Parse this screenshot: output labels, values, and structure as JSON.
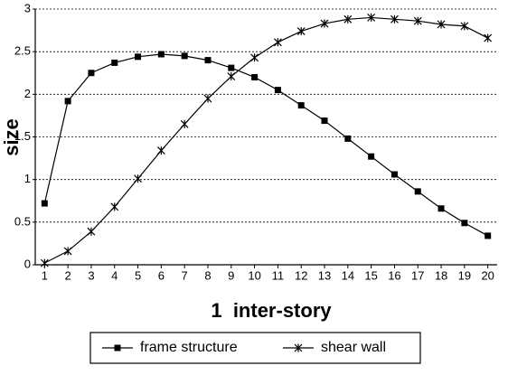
{
  "chart_data": {
    "type": "line",
    "x": [
      1,
      2,
      3,
      4,
      5,
      6,
      7,
      8,
      9,
      10,
      11,
      12,
      13,
      14,
      15,
      16,
      17,
      18,
      19,
      20
    ],
    "xlim": [
      0.6,
      20.4
    ],
    "ylim": [
      0,
      3
    ],
    "yticks": [
      0,
      0.5,
      1,
      1.5,
      2,
      2.5,
      3
    ],
    "xlabel": "1  inter-story",
    "ylabel": "size",
    "grid": true,
    "series": [
      {
        "name": "frame structure",
        "color": "#000000",
        "marker": "square",
        "values": [
          0.72,
          1.92,
          2.25,
          2.37,
          2.44,
          2.47,
          2.45,
          2.4,
          2.31,
          2.2,
          2.05,
          1.87,
          1.69,
          1.48,
          1.27,
          1.06,
          0.86,
          0.66,
          0.49,
          0.34
        ]
      },
      {
        "name": "shear wall",
        "color": "#000000",
        "marker": "star",
        "values": [
          0.02,
          0.16,
          0.39,
          0.68,
          1.01,
          1.34,
          1.65,
          1.95,
          2.21,
          2.43,
          2.61,
          2.74,
          2.83,
          2.88,
          2.9,
          2.88,
          2.86,
          2.82,
          2.8,
          2.66
        ]
      }
    ]
  }
}
